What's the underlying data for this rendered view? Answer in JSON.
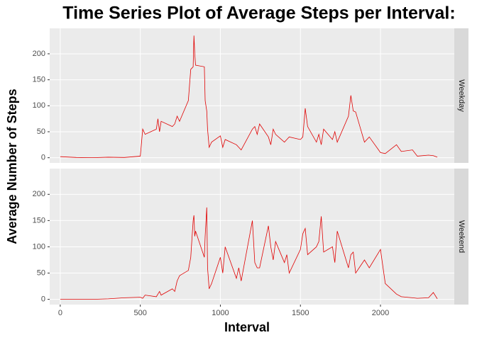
{
  "chart_data": {
    "type": "line",
    "title": "Time Series Plot of Average Steps per Interval:",
    "xlabel": "Interval",
    "ylabel": "Average Number of Steps",
    "x": [
      0,
      100,
      200,
      300,
      400,
      500,
      515,
      530,
      600,
      610,
      620,
      630,
      700,
      715,
      730,
      745,
      800,
      815,
      830,
      835,
      840,
      845,
      900,
      905,
      915,
      920,
      930,
      945,
      1000,
      1015,
      1030,
      1100,
      1115,
      1130,
      1200,
      1215,
      1230,
      1245,
      1300,
      1315,
      1330,
      1345,
      1400,
      1415,
      1430,
      1500,
      1515,
      1530,
      1545,
      1600,
      1615,
      1630,
      1645,
      1700,
      1715,
      1730,
      1800,
      1815,
      1830,
      1845,
      1900,
      1930,
      2000,
      2030,
      2100,
      2130,
      2200,
      2230,
      2300,
      2330,
      2355
    ],
    "series": [
      {
        "name": "Weekday",
        "color": "#e00000",
        "values": [
          2,
          0.5,
          0,
          1,
          0.5,
          3,
          55,
          45,
          55,
          75,
          50,
          70,
          60,
          65,
          80,
          70,
          110,
          170,
          175,
          235,
          200,
          178,
          175,
          110,
          90,
          55,
          20,
          30,
          42,
          20,
          35,
          25,
          20,
          15,
          55,
          60,
          45,
          65,
          40,
          25,
          55,
          45,
          30,
          35,
          40,
          35,
          40,
          95,
          60,
          30,
          45,
          25,
          55,
          35,
          50,
          30,
          80,
          120,
          90,
          88,
          30,
          40,
          10,
          8,
          25,
          12,
          15,
          3,
          5,
          4,
          1
        ]
      },
      {
        "name": "Weekend",
        "color": "#e00000",
        "values": [
          0,
          0,
          0,
          1,
          3,
          4,
          2,
          8,
          5,
          10,
          15,
          8,
          20,
          15,
          35,
          45,
          55,
          80,
          150,
          160,
          120,
          130,
          80,
          120,
          175,
          60,
          20,
          30,
          80,
          50,
          100,
          40,
          60,
          35,
          150,
          70,
          60,
          60,
          140,
          100,
          75,
          110,
          70,
          85,
          50,
          95,
          125,
          135,
          85,
          100,
          110,
          158,
          90,
          100,
          70,
          130,
          60,
          85,
          90,
          50,
          75,
          60,
          95,
          30,
          10,
          5,
          3,
          2,
          3,
          13,
          1
        ]
      }
    ],
    "xlim": [
      -66,
      2461
    ],
    "xticks": [
      0,
      500,
      1000,
      1500,
      2000
    ],
    "ylim": [
      -10,
      249
    ],
    "yticks": [
      0,
      50,
      100,
      150,
      200
    ],
    "grid": true
  }
}
